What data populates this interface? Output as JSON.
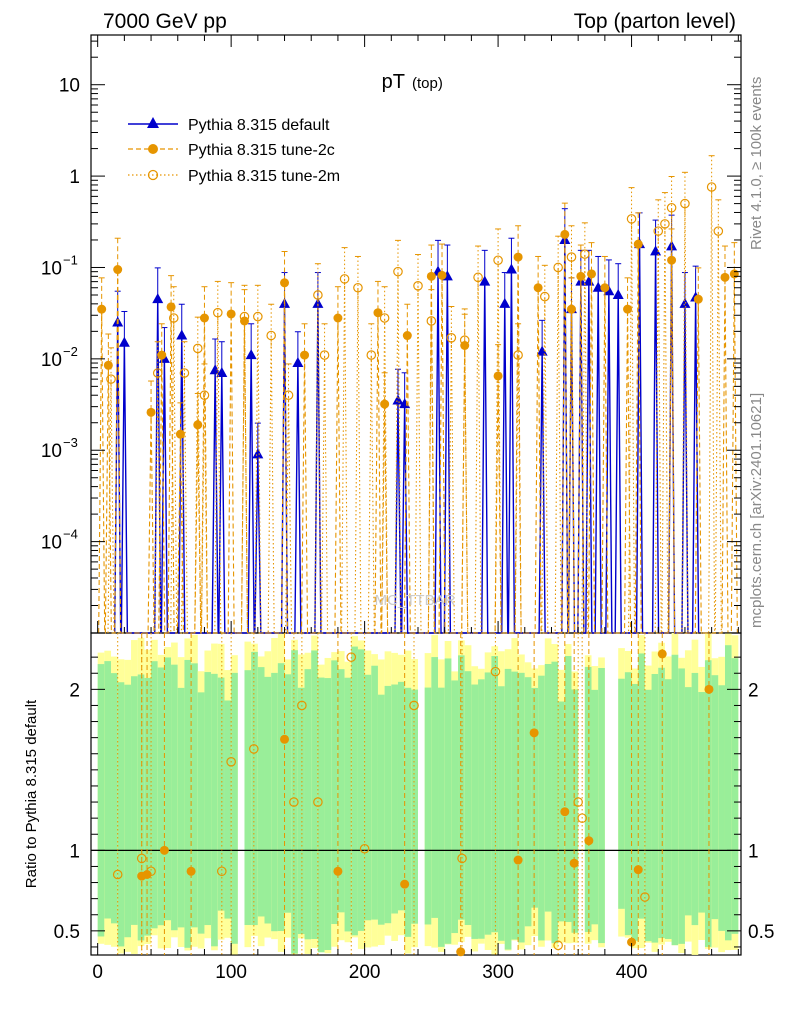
{
  "header": {
    "left": "7000 GeV pp",
    "right": "Top (parton level)"
  },
  "side_labels": {
    "rivet": "Rivet 4.1.0, ≥ 100k events",
    "mcplots": "mcplots.cern.ch [arXiv:2401.10621]"
  },
  "watermark": "MC_TTBAR",
  "chart_data": {
    "type": "line",
    "title": "pT",
    "title_sub": "(top)",
    "xlabel": "",
    "xlim": [
      -5,
      482
    ],
    "xticks": [
      0,
      100,
      200,
      300,
      400
    ],
    "xtick_labels": [
      "0",
      "100",
      "200",
      "300",
      "400"
    ],
    "main": {
      "yscale": "log",
      "ylim": [
        1e-05,
        35
      ],
      "yticks": [
        0.0001,
        0.001,
        0.01,
        0.1,
        1,
        10
      ],
      "ytick_labels": [
        "10^-4",
        "10^-3",
        "10^-2",
        "10^-1",
        "1",
        "10"
      ]
    },
    "ratio": {
      "ylabel": "Ratio to Pythia 8.315 default",
      "ylim": [
        0.35,
        2.35
      ],
      "yticks": [
        0.5,
        1,
        2
      ],
      "ytick_labels": [
        "0.5",
        "1",
        "2"
      ]
    },
    "legend": [
      {
        "name": "Pythia 8.315 default",
        "color": "#0000cc",
        "marker": "triangle",
        "line": "solid"
      },
      {
        "name": "Pythia 8.315 tune-2c",
        "color": "#e69500",
        "marker": "circle",
        "line": "dashed"
      },
      {
        "name": "Pythia 8.315 tune-2m",
        "color": "#e69500",
        "marker": "open-circle",
        "line": "dotted"
      }
    ],
    "series": [
      {
        "name": "Pythia 8.315 default",
        "x": [
          15,
          20,
          45,
          50,
          63,
          88,
          93,
          115,
          120,
          140,
          150,
          165,
          225,
          230,
          255,
          262,
          290,
          305,
          310,
          333,
          350,
          355,
          362,
          368,
          375,
          383,
          390,
          406,
          418,
          430,
          440,
          448
        ],
        "values": [
          0.025,
          0.015,
          0.045,
          0.01,
          0.018,
          0.0075,
          0.007,
          0.011,
          0.0009,
          0.04,
          0.009,
          0.04,
          0.0035,
          0.0032,
          0.09,
          0.08,
          0.07,
          0.04,
          0.095,
          0.012,
          0.2,
          0.035,
          0.07,
          0.07,
          0.06,
          0.055,
          0.05,
          0.18,
          0.15,
          0.17,
          0.04,
          0.047
        ]
      },
      {
        "name": "Pythia 8.315 tune-2c",
        "x": [
          3,
          8,
          15,
          40,
          48,
          55,
          62,
          75,
          80,
          100,
          110,
          140,
          155,
          180,
          210,
          215,
          232,
          250,
          258,
          275,
          300,
          315,
          330,
          350,
          355,
          362,
          370,
          380,
          397,
          405,
          430,
          450,
          470,
          477
        ],
        "values": [
          0.035,
          0.0085,
          0.095,
          0.0026,
          0.011,
          0.037,
          0.0015,
          0.0019,
          0.028,
          0.031,
          0.026,
          0.068,
          0.011,
          0.028,
          0.032,
          0.0032,
          0.018,
          0.08,
          0.082,
          0.014,
          0.0065,
          0.13,
          0.06,
          0.23,
          0.035,
          0.08,
          0.085,
          0.06,
          0.035,
          0.18,
          0.12,
          0.045,
          0.078,
          0.085
        ]
      },
      {
        "name": "Pythia 8.315 tune-2m",
        "x": [
          10,
          45,
          57,
          65,
          75,
          80,
          90,
          110,
          120,
          130,
          143,
          165,
          170,
          185,
          195,
          205,
          215,
          225,
          240,
          250,
          265,
          275,
          285,
          300,
          315,
          335,
          345,
          355,
          365,
          400,
          420,
          425,
          430,
          440,
          460,
          465
        ],
        "values": [
          0.006,
          0.007,
          0.028,
          0.007,
          0.013,
          0.004,
          0.032,
          0.029,
          0.029,
          0.018,
          0.004,
          0.05,
          0.011,
          0.075,
          0.06,
          0.011,
          0.028,
          0.09,
          0.063,
          0.026,
          0.017,
          0.016,
          0.078,
          0.12,
          0.011,
          0.048,
          0.1,
          0.13,
          0.14,
          0.34,
          0.25,
          0.3,
          0.45,
          0.5,
          0.76,
          0.25
        ]
      }
    ],
    "ratio_series": [
      {
        "name": "Pythia 8.315 tune-2c",
        "x": [
          33,
          37,
          50,
          70,
          140,
          180,
          230,
          272,
          315,
          327,
          350,
          357,
          368,
          400,
          405,
          423,
          458
        ],
        "values": [
          0.84,
          0.85,
          1.0,
          0.87,
          1.69,
          0.87,
          0.79,
          0.37,
          0.94,
          1.73,
          1.24,
          0.92,
          1.06,
          0.43,
          0.88,
          2.22,
          2.0
        ]
      },
      {
        "name": "Pythia 8.315 tune-2m",
        "x": [
          15,
          33,
          40,
          93,
          100,
          117,
          147,
          153,
          165,
          190,
          200,
          237,
          273,
          298,
          345,
          360,
          363,
          410
        ],
        "values": [
          0.85,
          0.95,
          0.87,
          0.87,
          1.55,
          1.63,
          1.3,
          1.9,
          1.3,
          2.2,
          1.01,
          1.9,
          0.95,
          2.11,
          0.41,
          1.3,
          1.2,
          0.71
        ]
      }
    ],
    "band_colors": {
      "inner": "#99ee99",
      "outer": "#ffff99"
    }
  }
}
